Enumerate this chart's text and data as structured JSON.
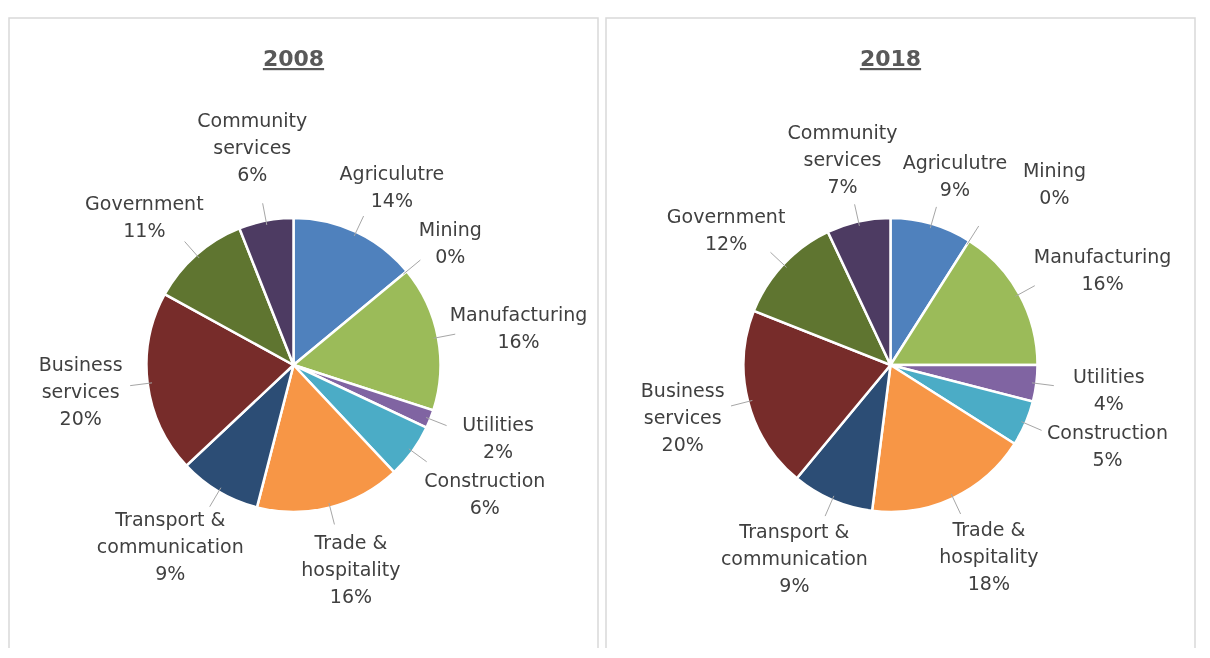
{
  "chart_data": [
    {
      "type": "pie",
      "title": "2008",
      "categories": [
        "Agriculutre",
        "Mining",
        "Manufacturing",
        "Utilities",
        "Construction",
        "Trade & hospitality",
        "Transport & communication",
        "Business services",
        "Government",
        "Community services"
      ],
      "values": [
        14,
        0,
        16,
        2,
        6,
        16,
        9,
        20,
        11,
        6
      ],
      "value_labels": [
        "14%",
        "0%",
        "16%",
        "2%",
        "6%",
        "16%",
        "9%",
        "20%",
        "11%",
        "6%"
      ],
      "colors": [
        "#4f81bd",
        "#c0504d",
        "#9bbb59",
        "#8064a2",
        "#4bacc6",
        "#f79646",
        "#2c4d75",
        "#772c2a",
        "#5f7530",
        "#4d3b62"
      ]
    },
    {
      "type": "pie",
      "title": "2018",
      "categories": [
        "Agriculutre",
        "Mining",
        "Manufacturing",
        "Utilities",
        "Construction",
        "Trade & hospitality",
        "Transport & communication",
        "Business services",
        "Government",
        "Community services"
      ],
      "values": [
        9,
        0,
        16,
        4,
        5,
        18,
        9,
        20,
        12,
        7
      ],
      "value_labels": [
        "9%",
        "0%",
        "16%",
        "4%",
        "5%",
        "18%",
        "9%",
        "20%",
        "12%",
        "7%"
      ],
      "colors": [
        "#4f81bd",
        "#c0504d",
        "#9bbb59",
        "#8064a2",
        "#4bacc6",
        "#f79646",
        "#2c4d75",
        "#772c2a",
        "#5f7530",
        "#4d3b62"
      ]
    }
  ]
}
